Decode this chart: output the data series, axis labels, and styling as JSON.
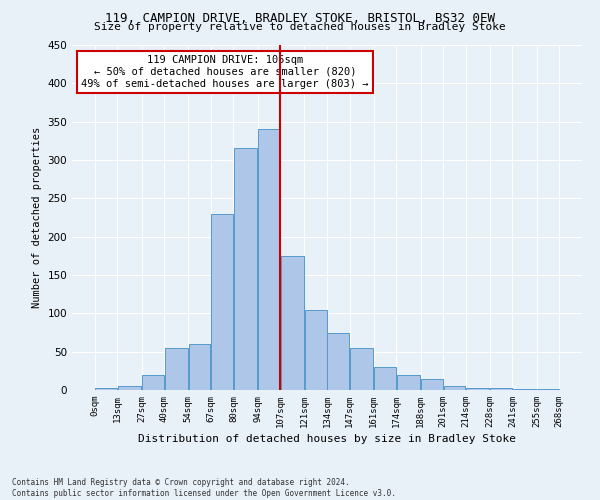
{
  "title1": "119, CAMPION DRIVE, BRADLEY STOKE, BRISTOL, BS32 0EW",
  "title2": "Size of property relative to detached houses in Bradley Stoke",
  "xlabel": "Distribution of detached houses by size in Bradley Stoke",
  "ylabel": "Number of detached properties",
  "footnote": "Contains HM Land Registry data © Crown copyright and database right 2024.\nContains public sector information licensed under the Open Government Licence v3.0.",
  "annotation_line1": "119 CAMPION DRIVE: 105sqm",
  "annotation_line2": "← 50% of detached houses are smaller (820)",
  "annotation_line3": "49% of semi-detached houses are larger (803) →",
  "property_size": 105,
  "bar_edges": [
    0,
    13,
    27,
    40,
    54,
    67,
    80,
    94,
    107,
    121,
    134,
    147,
    161,
    174,
    188,
    201,
    214,
    228,
    241,
    255,
    268
  ],
  "bar_heights": [
    2,
    5,
    20,
    55,
    60,
    230,
    315,
    340,
    175,
    105,
    75,
    55,
    30,
    20,
    15,
    5,
    3,
    2,
    1,
    1
  ],
  "bar_color": "#aec6e8",
  "bar_edge_color": "#5599cc",
  "vline_x": 107,
  "vline_color": "#cc0000",
  "annotation_box_color": "#cc0000",
  "background_color": "#e8f0f8",
  "grid_color": "#ffffff",
  "ylim": [
    0,
    450
  ],
  "yticks": [
    0,
    50,
    100,
    150,
    200,
    250,
    300,
    350,
    400,
    450
  ]
}
